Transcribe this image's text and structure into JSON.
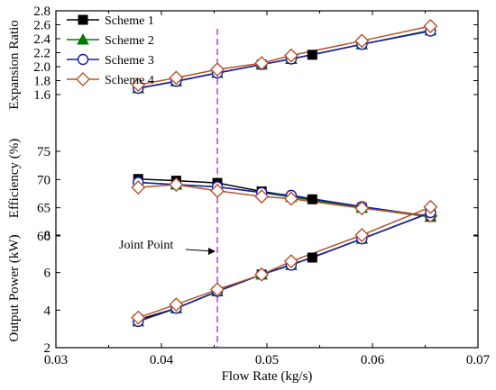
{
  "chart_data": {
    "type": "line",
    "xlabel": "Flow Rate (kg/s)",
    "xlim": [
      0.03,
      0.07
    ],
    "xticks": [
      "0.03",
      "0.04",
      "0.05",
      "0.06",
      "0.07"
    ],
    "grid": false,
    "legend_position": "top-left",
    "panels": [
      {
        "ylabel": "Expansion Ratio",
        "ylim": [
          1.6,
          2.8
        ],
        "yticks": [
          "1.6",
          "2.0",
          "2.4",
          "2.8"
        ],
        "minor_yticks": [
          "1.8",
          "2.2",
          "2.6"
        ],
        "series": [
          {
            "name": "Scheme 1",
            "x": [
              0.0378,
              0.0414,
              0.0453,
              0.0495,
              0.0543,
              0.059,
              0.0655
            ],
            "y": [
              1.69,
              1.79,
              1.91,
              2.03,
              2.17,
              2.32,
              2.52
            ]
          },
          {
            "name": "Scheme 2",
            "x": [
              0.0378,
              0.0414,
              0.0453,
              0.0495,
              0.0523,
              0.059,
              0.0655
            ],
            "y": [
              1.69,
              1.79,
              1.91,
              2.03,
              2.11,
              2.32,
              2.52
            ]
          },
          {
            "name": "Scheme 3",
            "x": [
              0.0378,
              0.0414,
              0.0453,
              0.0495,
              0.0523,
              0.059,
              0.0655
            ],
            "y": [
              1.69,
              1.79,
              1.91,
              2.03,
              2.11,
              2.32,
              2.51
            ]
          },
          {
            "name": "Scheme 4",
            "x": [
              0.0378,
              0.0414,
              0.0453,
              0.0495,
              0.0523,
              0.059,
              0.0655
            ],
            "y": [
              1.74,
              1.84,
              1.96,
              2.05,
              2.16,
              2.37,
              2.58
            ]
          }
        ]
      },
      {
        "ylabel": "Efficiency (%)",
        "ylim": [
          60,
          75
        ],
        "yticks": [
          "60",
          "65",
          "70",
          "75"
        ],
        "series": [
          {
            "name": "Scheme 1",
            "x": [
              0.0378,
              0.0414,
              0.0453,
              0.0495,
              0.0543,
              0.059,
              0.0655
            ],
            "y": [
              70.1,
              69.8,
              69.4,
              67.9,
              66.5,
              65.0,
              63.4
            ]
          },
          {
            "name": "Scheme 2",
            "x": [
              0.0378,
              0.0414,
              0.0453,
              0.0495,
              0.0523,
              0.059,
              0.0655
            ],
            "y": [
              69.5,
              69.1,
              68.7,
              67.7,
              66.9,
              65.0,
              63.4
            ]
          },
          {
            "name": "Scheme 3",
            "x": [
              0.0378,
              0.0414,
              0.0453,
              0.0495,
              0.0523,
              0.059,
              0.0655
            ],
            "y": [
              69.5,
              69.1,
              68.7,
              67.7,
              67.2,
              65.2,
              63.5
            ]
          },
          {
            "name": "Scheme 4",
            "x": [
              0.0378,
              0.0414,
              0.0453,
              0.0495,
              0.0523,
              0.059,
              0.0655
            ],
            "y": [
              68.6,
              69.1,
              68.0,
              67.0,
              66.6,
              64.9,
              63.6
            ]
          }
        ]
      },
      {
        "ylabel": "Output Power (kW)",
        "ylim": [
          2,
          10
        ],
        "yticks": [
          "2",
          "4",
          "6",
          "8"
        ],
        "series": [
          {
            "name": "Scheme 1",
            "x": [
              0.0378,
              0.0414,
              0.0453,
              0.0495,
              0.0543,
              0.059,
              0.0655
            ],
            "y": [
              3.5,
              4.1,
              5.0,
              5.9,
              6.8,
              7.8,
              9.2
            ]
          },
          {
            "name": "Scheme 2",
            "x": [
              0.0378,
              0.0414,
              0.0453,
              0.0495,
              0.0523,
              0.059,
              0.0655
            ],
            "y": [
              3.4,
              4.1,
              5.0,
              5.9,
              6.4,
              7.8,
              9.2
            ]
          },
          {
            "name": "Scheme 3",
            "x": [
              0.0378,
              0.0414,
              0.0453,
              0.0495,
              0.0523,
              0.059,
              0.0655
            ],
            "y": [
              3.4,
              4.1,
              5.0,
              5.9,
              6.4,
              7.8,
              9.2
            ]
          },
          {
            "name": "Scheme 4",
            "x": [
              0.0378,
              0.0414,
              0.0453,
              0.0495,
              0.0523,
              0.059,
              0.0655
            ],
            "y": [
              3.6,
              4.3,
              5.1,
              5.9,
              6.6,
              8.0,
              9.5
            ]
          }
        ]
      }
    ],
    "annotations": [
      {
        "text": "Joint Point",
        "type": "vertical-dashed-line",
        "x": 0.0453
      }
    ]
  },
  "colors": {
    "scheme_1": "#000000",
    "scheme_2": "#007a00",
    "scheme_3": "#1a1aa6",
    "scheme_4": "#b5542a",
    "joint_line": "#b430d8"
  },
  "markers": {
    "scheme_1": "filled-square",
    "scheme_2": "filled-triangle",
    "scheme_3": "open-circle",
    "scheme_4": "open-diamond"
  }
}
